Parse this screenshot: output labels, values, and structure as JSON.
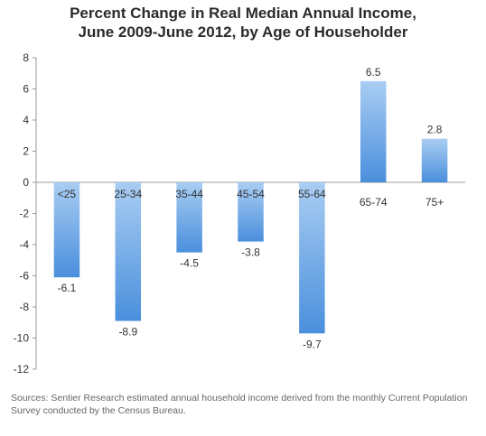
{
  "chart_data": {
    "type": "bar",
    "title_line1": "Percent Change in Real Median Annual Income,",
    "title_line2": "June 2009-June 2012, by Age of Householder",
    "xlabel": "",
    "ylabel": "",
    "categories": [
      "<25",
      "25-34",
      "35-44",
      "45-54",
      "55-64",
      "65-74",
      "75+"
    ],
    "values": [
      -6.1,
      -8.9,
      -4.5,
      -3.8,
      -9.7,
      6.5,
      2.8
    ],
    "value_labels": [
      "-6.1",
      "-8.9",
      "-4.5",
      "-3.8",
      "-9.7",
      "6.5",
      "2.8"
    ],
    "ylim": [
      -12,
      8
    ],
    "yticks": [
      8,
      6,
      4,
      2,
      0,
      -2,
      -4,
      -6,
      -8,
      -10,
      -12
    ],
    "grid": false,
    "bar_color": "#4a8fdc",
    "bar_color_light": "#a9cdf3"
  },
  "source_note": "Sources: Sentier Research estimated annual household income derived from the monthly Current Population Survey conducted by the Census Bureau."
}
